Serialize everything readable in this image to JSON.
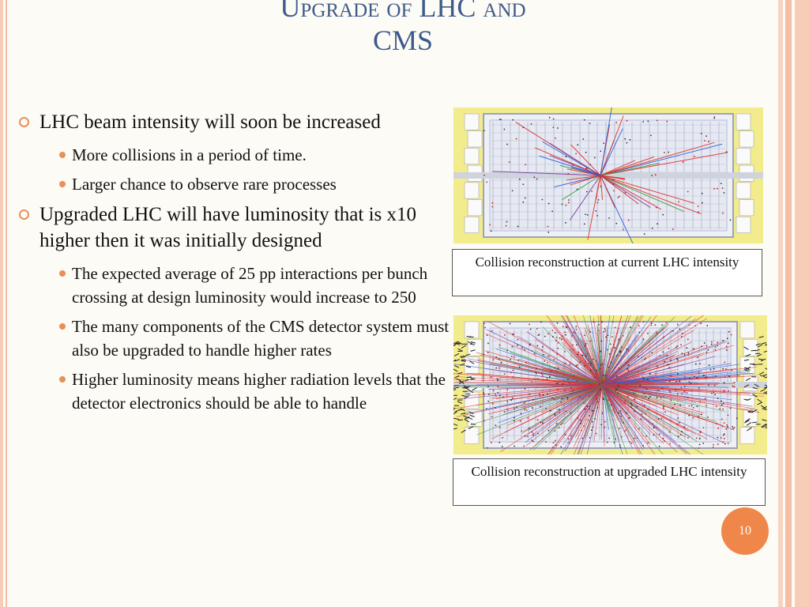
{
  "slide": {
    "title_line1": "Upgrade of LHC and",
    "title_line2": "CMS",
    "page_number": "10"
  },
  "bullets": {
    "b1": {
      "text": "LHC beam intensity will soon be increased",
      "subs": [
        "More collisions in a period of time.",
        "Larger chance to observe rare processes"
      ]
    },
    "b2": {
      "text": "Upgraded LHC will have luminosity that is x10 higher then it was initially designed",
      "subs": [
        "The expected average of 25 pp interactions per bunch crossing at design luminosity would increase to 250",
        "The many components of the CMS detector system must also be upgraded to handle higher rates",
        "Higher luminosity means higher radiation levels that the detector electronics should be able to handle"
      ]
    }
  },
  "figures": {
    "current_caption": "Collision reconstruction at current LHC intensity",
    "upgraded_caption": "Collision reconstruction at upgraded LHC intensity"
  },
  "colors": {
    "title": "#3d5a8a",
    "bullet_accent": "#e8905a",
    "stripe": "#f4c2a8",
    "badge": "#f0874a",
    "frame": "#f2ec8c"
  }
}
